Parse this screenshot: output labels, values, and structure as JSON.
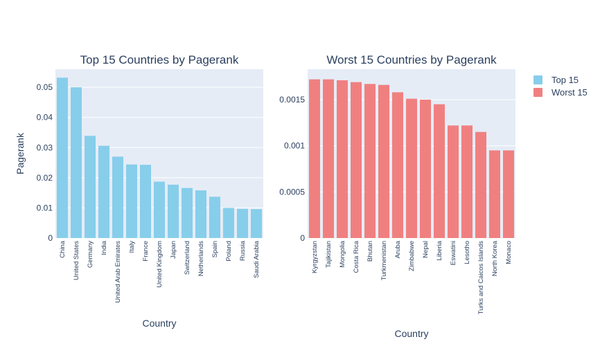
{
  "chart_data": [
    {
      "type": "bar",
      "title": "Top 15 Countries by Pagerank",
      "xlabel": "Country",
      "ylabel": "Pagerank",
      "ylim": [
        0,
        0.056
      ],
      "yticks": [
        0,
        0.01,
        0.02,
        0.03,
        0.04,
        0.05
      ],
      "ytick_labels": [
        "0",
        "0.01",
        "0.02",
        "0.03",
        "0.04",
        "0.05"
      ],
      "color": "#87ceeb",
      "series_name": "Top 15",
      "categories": [
        "China",
        "United States",
        "Germany",
        "India",
        "United Arab Emirates",
        "Italy",
        "France",
        "United Kingdom",
        "Japan",
        "Switzerland",
        "Netherlands",
        "Spain",
        "Poland",
        "Russia",
        "Saudi Arabia"
      ],
      "values": [
        0.0532,
        0.05,
        0.0339,
        0.0306,
        0.027,
        0.0244,
        0.0243,
        0.0187,
        0.0177,
        0.0166,
        0.0158,
        0.0137,
        0.01,
        0.0097,
        0.0096
      ]
    },
    {
      "type": "bar",
      "title": "Worst 15 Countries by Pagerank",
      "xlabel": "Country",
      "ylabel": "",
      "ylim": [
        0,
        0.00183
      ],
      "yticks": [
        0,
        0.0005,
        0.001,
        0.0015
      ],
      "ytick_labels": [
        "0",
        "0.0005",
        "0.001",
        "0.0015"
      ],
      "color": "#f08080",
      "series_name": "Worst 15",
      "categories": [
        "Kyrgyzstan",
        "Tajikistan",
        "Mongolia",
        "Costa Rica",
        "Bhutan",
        "Turkmenistan",
        "Aruba",
        "Zimbabwe",
        "Nepal",
        "Liberia",
        "Eswatini",
        "Lesotho",
        "Turks and Caicos Islands",
        "North Korea",
        "Monaco"
      ],
      "values": [
        0.00172,
        0.00172,
        0.00171,
        0.00169,
        0.00167,
        0.00166,
        0.00158,
        0.00151,
        0.0015,
        0.00145,
        0.00122,
        0.00122,
        0.00115,
        0.00095,
        0.00095
      ]
    }
  ],
  "legend": {
    "position": "top-right",
    "items": [
      {
        "label": "Top 15",
        "color": "#87ceeb"
      },
      {
        "label": "Worst 15",
        "color": "#f08080"
      }
    ]
  }
}
